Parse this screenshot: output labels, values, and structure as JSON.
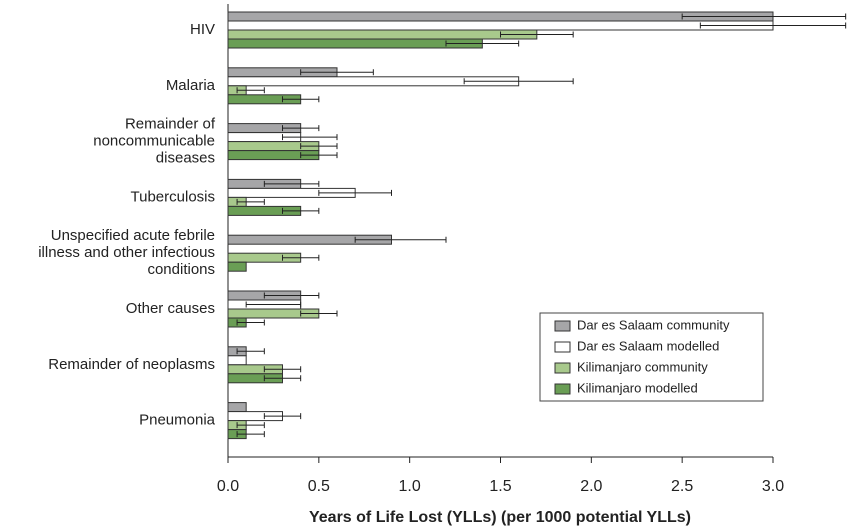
{
  "chart_data": {
    "type": "hbar",
    "x_label": "Years of Life Lost (YLLs) (per 1000 potential YLLs)",
    "categories": [
      [
        "HIV"
      ],
      [
        "Malaria"
      ],
      [
        "Remainder of",
        "noncommunicable",
        "diseases"
      ],
      [
        "Tuberculosis"
      ],
      [
        "Unspecified acute febrile",
        "illness and other infectious",
        "conditions"
      ],
      [
        "Other causes"
      ],
      [
        "Remainder of neoplasms"
      ],
      [
        "Pneumonia"
      ]
    ],
    "series": [
      {
        "name": "Dar es Salaam community",
        "color": "#a6a6a8",
        "values": [
          3.0,
          0.6,
          0.4,
          0.4,
          0.9,
          0.4,
          0.1,
          0.1
        ],
        "lower": [
          2.5,
          0.4,
          0.3,
          0.2,
          0.7,
          0.2,
          0.05,
          null
        ],
        "upper": [
          3.4,
          0.8,
          0.5,
          0.5,
          1.2,
          0.5,
          0.2,
          null
        ]
      },
      {
        "name": "Dar es Salaam modelled",
        "color": "#ffffff",
        "values": [
          3.0,
          1.6,
          0.4,
          0.7,
          0,
          0.4,
          0.1,
          0.3
        ],
        "lower": [
          2.6,
          1.3,
          0.3,
          0.5,
          null,
          0.1,
          null,
          0.2
        ],
        "upper": [
          3.4,
          1.9,
          0.6,
          0.9,
          null,
          0.4,
          null,
          0.4
        ]
      },
      {
        "name": "Kilimanjaro community",
        "color": "#a8c98c",
        "values": [
          1.7,
          0.1,
          0.5,
          0.1,
          0.4,
          0.5,
          0.3,
          0.1
        ],
        "lower": [
          1.5,
          0.05,
          0.4,
          0.05,
          0.3,
          0.4,
          0.2,
          0.05
        ],
        "upper": [
          1.9,
          0.2,
          0.6,
          0.2,
          0.5,
          0.6,
          0.4,
          0.2
        ]
      },
      {
        "name": "Kilimanjaro modelled",
        "color": "#6a9e55",
        "values": [
          1.4,
          0.4,
          0.5,
          0.4,
          0.1,
          0.1,
          0.3,
          0.1
        ],
        "lower": [
          1.2,
          0.3,
          0.4,
          0.3,
          null,
          0.05,
          0.2,
          0.05
        ],
        "upper": [
          1.6,
          0.5,
          0.6,
          0.5,
          null,
          0.2,
          0.4,
          0.2
        ]
      }
    ],
    "xlim": [
      0,
      3.0
    ],
    "xticks": [
      {
        "value": 0,
        "label": "0.0"
      },
      0.5,
      {
        "value": 1,
        "label": "1.0"
      },
      1.5,
      {
        "value": 2,
        "label": "2.0"
      },
      2.5,
      {
        "value": 3,
        "label": "3.0"
      }
    ],
    "legend": "lower-right"
  }
}
